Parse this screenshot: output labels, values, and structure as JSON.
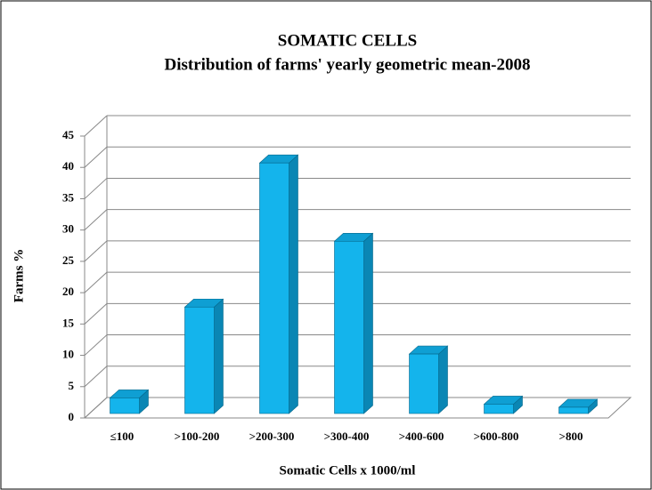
{
  "chart_data": {
    "type": "bar3d",
    "title": "SOMATIC CELLS",
    "subtitle": "Distribution of farms' yearly geometric mean-2008",
    "x_label": "Somatic Cells x 1000/ml",
    "y_label": "Farms %",
    "categories": [
      "≤100",
      ">100-200",
      ">200-300",
      ">300-400",
      ">400-600",
      ">600-800",
      ">800"
    ],
    "values": [
      2.5,
      17,
      40,
      27.5,
      9.5,
      1.5,
      1
    ],
    "color": "#14b4ec",
    "ylim": [
      0,
      45
    ],
    "yticks": [
      0,
      5,
      10,
      15,
      20,
      25,
      30,
      35,
      40,
      45
    ],
    "grid": true
  }
}
